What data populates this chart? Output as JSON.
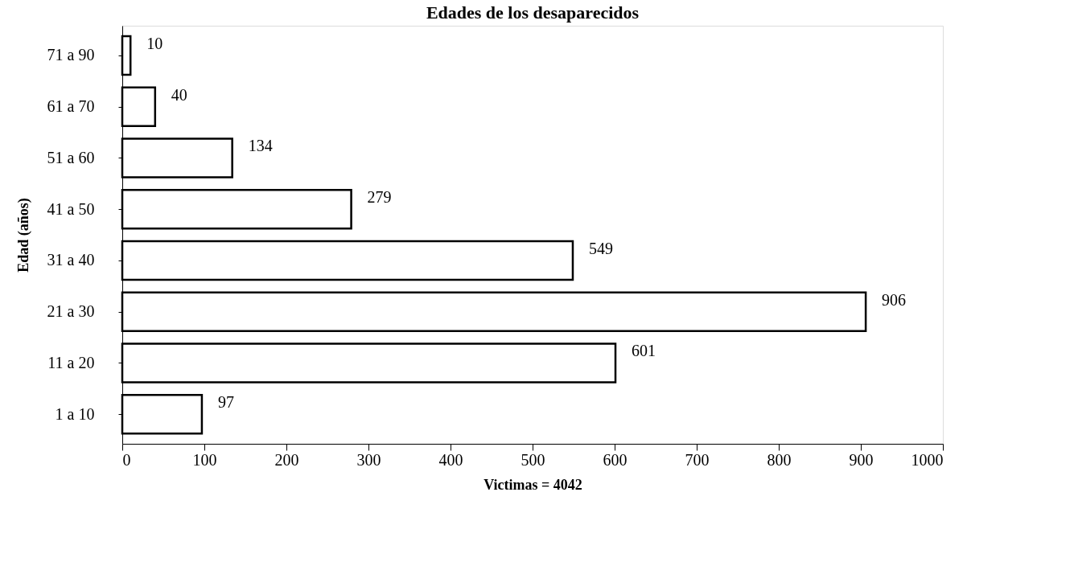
{
  "chart_data": {
    "type": "bar",
    "orientation": "horizontal",
    "title": "Edades de los desaparecidos",
    "xlabel": "Victimas = 4042",
    "ylabel": "Edad (años)",
    "categories": [
      "71 a 90",
      "61 a 70",
      "51 a 60",
      "41 a 50",
      "31 a 40",
      "21 a 30",
      "11 a 20",
      "1 a 10"
    ],
    "values": [
      10,
      40,
      134,
      279,
      549,
      906,
      601,
      97
    ],
    "color": "#ffffff",
    "xlim": [
      0,
      1000
    ],
    "xticks": [
      0,
      100,
      200,
      300,
      400,
      500,
      600,
      700,
      800,
      900,
      1000
    ],
    "data_labels": true,
    "grid": false
  }
}
